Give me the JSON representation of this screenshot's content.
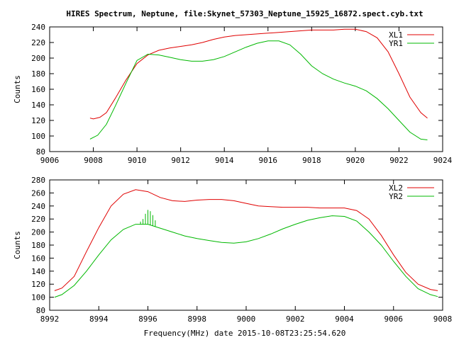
{
  "title": "HIRES Spectrum, Neptune, file:Skynet_57303_Neptune_15925_16872.spect.cyb.txt",
  "xlabel": "Frequency(MHz) date 2015-10-08T23:25:54.620",
  "colors": {
    "red": "#e00000",
    "green": "#00b800"
  },
  "chart_data": [
    {
      "type": "line",
      "ylabel": "Counts",
      "xlim": [
        9006,
        9024
      ],
      "ylim": [
        80,
        240
      ],
      "xticks": [
        9006,
        9008,
        9010,
        9012,
        9014,
        9016,
        9018,
        9020,
        9022,
        9024
      ],
      "yticks": [
        80,
        100,
        120,
        140,
        160,
        180,
        200,
        220,
        240
      ],
      "legend_position": "top-right",
      "series": [
        {
          "name": "XL1",
          "color": "red",
          "x": [
            9007.85,
            9008.0,
            9008.3,
            9008.6,
            9009.0,
            9009.5,
            9010.0,
            9010.5,
            9011.0,
            9011.5,
            9012.0,
            9012.5,
            9013.0,
            9013.5,
            9014.0,
            9014.5,
            9015.0,
            9015.5,
            9016.0,
            9016.5,
            9017.0,
            9017.5,
            9018.0,
            9018.5,
            9019.0,
            9019.5,
            9020.0,
            9020.5,
            9021.0,
            9021.5,
            9022.0,
            9022.5,
            9023.0,
            9023.3
          ],
          "y": [
            123,
            122,
            124,
            130,
            148,
            172,
            193,
            204,
            210,
            213,
            215,
            217,
            220,
            224,
            227,
            229,
            230,
            231,
            232,
            233,
            234,
            235,
            236,
            236,
            236,
            237,
            237,
            234,
            226,
            208,
            180,
            150,
            130,
            123
          ]
        },
        {
          "name": "YR1",
          "color": "green",
          "x": [
            9007.85,
            9008.2,
            9008.6,
            9009.0,
            9009.5,
            9010.0,
            9010.5,
            9011.0,
            9011.5,
            9012.0,
            9012.5,
            9013.0,
            9013.5,
            9014.0,
            9014.5,
            9015.0,
            9015.5,
            9016.0,
            9016.5,
            9017.0,
            9017.5,
            9018.0,
            9018.5,
            9019.0,
            9019.5,
            9020.0,
            9020.5,
            9021.0,
            9021.5,
            9022.0,
            9022.5,
            9023.0,
            9023.3
          ],
          "y": [
            96,
            101,
            115,
            138,
            168,
            197,
            205,
            204,
            201,
            198,
            196,
            196,
            198,
            202,
            208,
            214,
            219,
            222,
            222,
            217,
            205,
            190,
            180,
            173,
            168,
            164,
            158,
            148,
            135,
            120,
            105,
            96,
            95
          ]
        }
      ]
    },
    {
      "type": "line",
      "ylabel": "Counts",
      "xlim": [
        8992,
        9008
      ],
      "ylim": [
        80,
        280
      ],
      "xticks": [
        8992,
        8994,
        8996,
        8998,
        9000,
        9002,
        9004,
        9006,
        9008
      ],
      "yticks": [
        80,
        100,
        120,
        140,
        160,
        180,
        200,
        220,
        240,
        260,
        280
      ],
      "legend_position": "top-right",
      "series": [
        {
          "name": "XL2",
          "color": "red",
          "x": [
            8992.2,
            8992.5,
            8993.0,
            8993.5,
            8994.0,
            8994.5,
            8995.0,
            8995.5,
            8996.0,
            8996.5,
            8997.0,
            8997.5,
            8998.0,
            8998.5,
            8999.0,
            8999.5,
            9000.0,
            9000.5,
            9001.0,
            9001.5,
            9002.0,
            9002.5,
            9003.0,
            9003.5,
            9004.0,
            9004.5,
            9005.0,
            9005.5,
            9006.0,
            9006.5,
            9007.0,
            9007.5,
            9007.8
          ],
          "y": [
            110,
            114,
            132,
            170,
            207,
            240,
            258,
            265,
            262,
            253,
            248,
            247,
            249,
            250,
            250,
            248,
            244,
            240,
            239,
            238,
            238,
            238,
            237,
            237,
            237,
            233,
            220,
            195,
            165,
            138,
            120,
            112,
            110
          ]
        },
        {
          "name": "YR2",
          "color": "green",
          "x": [
            8992.2,
            8992.5,
            8993.0,
            8993.5,
            8994.0,
            8994.5,
            8995.0,
            8995.5,
            8996.0,
            8996.5,
            8997.0,
            8997.5,
            8998.0,
            8998.5,
            8999.0,
            8999.5,
            9000.0,
            9000.5,
            9001.0,
            9001.5,
            9002.0,
            9002.5,
            9003.0,
            9003.5,
            9004.0,
            9004.5,
            9005.0,
            9005.5,
            9006.0,
            9006.5,
            9007.0,
            9007.5,
            9007.8
          ],
          "y": [
            100,
            104,
            118,
            140,
            165,
            188,
            204,
            212,
            212,
            206,
            200,
            194,
            190,
            187,
            184,
            183,
            185,
            190,
            197,
            205,
            212,
            218,
            222,
            225,
            224,
            217,
            200,
            180,
            155,
            132,
            113,
            104,
            101
          ]
        }
      ],
      "spikes": {
        "series": "YR2",
        "x": [
          8995.7,
          8995.8,
          8995.9,
          8996.0,
          8996.1,
          8996.2,
          8996.3
        ],
        "y": [
          216,
          220,
          228,
          234,
          232,
          226,
          218
        ]
      }
    }
  ]
}
